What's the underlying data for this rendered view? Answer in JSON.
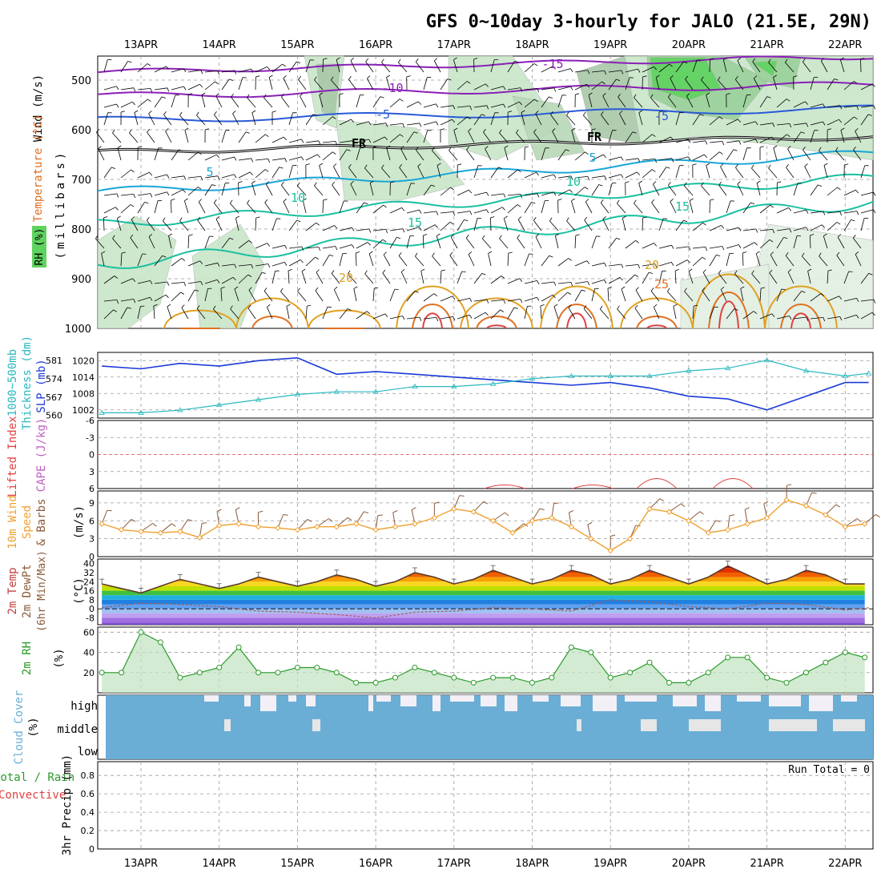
{
  "title": "GFS 0~10day 3-hourly for JALO (21.5E, 29N)",
  "dates": [
    "13APR",
    "14APR",
    "15APR",
    "16APR",
    "17APR",
    "18APR",
    "19APR",
    "20APR",
    "21APR",
    "22APR"
  ],
  "run_total": "Run Total = 0",
  "colors": {
    "rh_green": "#5fd35f",
    "rh_light": "#c8e6c8",
    "temp_purple": "#8a1fb8",
    "temp_blue": "#2a5ad8",
    "temp_cyan": "#1aa6d8",
    "temp_teal": "#1ac0a0",
    "temp_orange": "#e0a020",
    "temp_red": "#e04040",
    "slp_blue": "#1a3ad8",
    "thick_cyan": "#2ab8c0",
    "wind_orange": "#f0a030",
    "rh_point": "#2a9a2a",
    "cloud_blue": "#6aaed6",
    "cloud_white": "#f2f0f6"
  },
  "panels": {
    "upper": {
      "ylabel_rh": "RH (%)",
      "ylabel_temp": "Temperature (°C)",
      "ylabel_wind": "Wind (m/s)",
      "ylabel_pressure": "(millibars)",
      "yticks": [
        "500",
        "600",
        "700",
        "800",
        "900",
        "1000"
      ],
      "contour_labels": [
        "-15",
        "-10",
        "-5",
        "FR",
        "FR",
        "-5",
        "5",
        "5",
        "10",
        "10",
        "15",
        "15",
        "20",
        "20",
        "25"
      ]
    },
    "slp": {
      "ylabel_thick": "Thickness (dm)",
      "ylabel_thick2": "1000~500mb",
      "ylabel_slp": "SLP (mb)",
      "left_ticks": [
        "581",
        "574",
        "567",
        "560"
      ],
      "right_ticks": [
        "1020",
        "1014",
        "1008",
        "1002"
      ]
    },
    "cape": {
      "ylabel_li": "Lifted Index",
      "ylabel_cape": "CAPE (J/kg)",
      "yticks": [
        "-6",
        "-3",
        "0",
        "3",
        "6"
      ]
    },
    "wind10": {
      "ylabel1": "10m Wind",
      "ylabel2": "Speed",
      "ylabel3": "& Barbs",
      "unit": "(m/s)",
      "yticks": [
        "9",
        "6",
        "3",
        "0"
      ]
    },
    "temp2m": {
      "ylabel1": "2m Temp",
      "ylabel2": "2m DewPt",
      "ylabel3": "(6hr Min/Max)",
      "unit": "(°C)",
      "yticks": [
        "40",
        "32",
        "24",
        "16",
        "8",
        "0",
        "-8"
      ]
    },
    "rh2m": {
      "ylabel": "2m RH",
      "unit": "(%)",
      "yticks": [
        "60",
        "40",
        "20"
      ]
    },
    "cloud": {
      "ylabel": "Cloud Cover",
      "unit": "(%)",
      "levels": [
        "high",
        "middle",
        "low"
      ]
    },
    "precip": {
      "ylabel1": "Total / Rain",
      "ylabel2": "Convective",
      "ylabel3": "3hr Precip (mm)",
      "yticks": [
        "0.8",
        "0.6",
        "0.4",
        "0.2",
        "0"
      ]
    }
  },
  "chart_data": [
    {
      "type": "line",
      "title": "SLP",
      "ylabel": "SLP (mb)",
      "ylim": [
        999,
        1023
      ],
      "x_unit": "days from 13APR 00Z",
      "x": [
        -0.5,
        0,
        0.5,
        1,
        1.5,
        2,
        2.5,
        3,
        3.5,
        4,
        4.5,
        5,
        5.5,
        6,
        6.5,
        7,
        7.5,
        8,
        8.5,
        9,
        9.3
      ],
      "values": [
        1018,
        1017,
        1019,
        1018,
        1020,
        1021,
        1015,
        1016,
        1015,
        1014,
        1013,
        1012,
        1011,
        1012,
        1010,
        1007,
        1006,
        1002,
        1007,
        1012,
        1012
      ]
    },
    {
      "type": "line",
      "title": "1000~500mb Thickness",
      "ylabel": "Thickness (dm)",
      "ylim": [
        559,
        584
      ],
      "x": [
        -0.5,
        0,
        0.5,
        1,
        1.5,
        2,
        2.5,
        3,
        3.5,
        4,
        4.5,
        5,
        5.5,
        6,
        6.5,
        7,
        7.5,
        8,
        8.5,
        9,
        9.3
      ],
      "values": [
        561,
        561,
        562,
        564,
        566,
        568,
        569,
        569,
        571,
        571,
        572,
        574,
        575,
        575,
        575,
        577,
        578,
        581,
        577,
        575,
        576
      ]
    },
    {
      "type": "line",
      "title": "10m Wind Speed",
      "ylabel": "(m/s)",
      "ylim": [
        0,
        11
      ],
      "x": [
        -0.5,
        -0.25,
        0,
        0.25,
        0.5,
        0.75,
        1,
        1.25,
        1.5,
        1.75,
        2,
        2.25,
        2.5,
        2.75,
        3,
        3.25,
        3.5,
        3.75,
        4,
        4.25,
        4.5,
        4.75,
        5,
        5.25,
        5.5,
        5.75,
        6,
        6.25,
        6.5,
        6.75,
        7,
        7.25,
        7.5,
        7.75,
        8,
        8.25,
        8.5,
        8.75,
        9,
        9.25
      ],
      "values": [
        5.5,
        4.5,
        4.2,
        4.0,
        4.2,
        3.2,
        5.2,
        5.5,
        5.0,
        4.8,
        4.5,
        5.0,
        5.0,
        5.5,
        4.5,
        5.0,
        5.5,
        6.5,
        8.0,
        7.5,
        6.0,
        4.0,
        6.0,
        6.5,
        5.0,
        3.0,
        1.0,
        3.0,
        8.0,
        7.5,
        6.0,
        4.0,
        4.5,
        5.5,
        6.5,
        9.5,
        8.5,
        7.0,
        5.0,
        5.5
      ]
    },
    {
      "type": "area",
      "title": "2m Temp",
      "ylabel": "(°C)",
      "ylim": [
        -14,
        44
      ],
      "x": [
        -0.5,
        -0.25,
        0,
        0.25,
        0.5,
        0.75,
        1,
        1.25,
        1.5,
        1.75,
        2,
        2.25,
        2.5,
        2.75,
        3,
        3.25,
        3.5,
        3.75,
        4,
        4.25,
        4.5,
        4.75,
        5,
        5.25,
        5.5,
        5.75,
        6,
        6.25,
        6.5,
        6.75,
        7,
        7.25,
        7.5,
        7.75,
        8,
        8.25,
        8.5,
        8.75,
        9,
        9.25
      ],
      "values": [
        22,
        18,
        14,
        20,
        26,
        22,
        18,
        22,
        28,
        24,
        20,
        24,
        30,
        26,
        20,
        24,
        32,
        28,
        22,
        26,
        34,
        28,
        22,
        26,
        34,
        30,
        22,
        26,
        34,
        28,
        22,
        28,
        38,
        30,
        22,
        26,
        34,
        30,
        22,
        22
      ]
    },
    {
      "type": "line",
      "title": "2m DewPt",
      "ylabel": "(°C)",
      "ylim": [
        -14,
        44
      ],
      "x": [
        -0.5,
        0,
        0.5,
        1,
        1.5,
        2,
        2.5,
        3,
        3.5,
        4,
        4.5,
        5,
        5.5,
        6,
        6.5,
        7,
        7.5,
        8,
        8.5,
        9,
        9.3
      ],
      "values": [
        1,
        5,
        4,
        2,
        -2,
        -3,
        -5,
        -8,
        -3,
        -2,
        1,
        0,
        -2,
        8,
        6,
        2,
        0,
        5,
        4,
        -1,
        1
      ]
    },
    {
      "type": "line",
      "title": "2m RH",
      "ylabel": "(%)",
      "ylim": [
        0,
        65
      ],
      "x": [
        -0.5,
        -0.25,
        0,
        0.25,
        0.5,
        0.75,
        1,
        1.25,
        1.5,
        1.75,
        2,
        2.25,
        2.5,
        2.75,
        3,
        3.25,
        3.5,
        3.75,
        4,
        4.25,
        4.5,
        4.75,
        5,
        5.25,
        5.5,
        5.75,
        6,
        6.25,
        6.5,
        6.75,
        7,
        7.25,
        7.5,
        7.75,
        8,
        8.25,
        8.5,
        8.75,
        9,
        9.25
      ],
      "values": [
        20,
        20,
        60,
        50,
        15,
        20,
        25,
        45,
        20,
        20,
        25,
        25,
        20,
        10,
        10,
        15,
        25,
        20,
        15,
        10,
        15,
        15,
        10,
        15,
        45,
        40,
        15,
        20,
        30,
        10,
        10,
        20,
        35,
        35,
        15,
        10,
        20,
        30,
        40,
        35
      ]
    },
    {
      "type": "bar",
      "title": "3hr Precip",
      "ylabel": "3hr Precip (mm)",
      "ylim": [
        0,
        1
      ],
      "values": [
        0
      ]
    }
  ]
}
